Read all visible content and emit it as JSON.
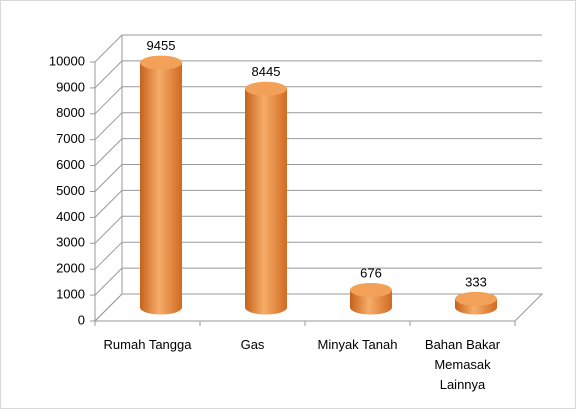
{
  "chart_data": {
    "type": "bar3d",
    "categories": [
      "Rumah Tangga",
      "Gas",
      "Minyak Tanah",
      "Bahan Bakar Memasak Lainnya"
    ],
    "values": [
      9455,
      8445,
      676,
      333
    ],
    "color": "#e98a3a",
    "ylim": [
      0,
      10000
    ],
    "yticks": [
      0,
      1000,
      2000,
      3000,
      4000,
      5000,
      6000,
      7000,
      8000,
      9000,
      10000
    ],
    "grid": true
  }
}
